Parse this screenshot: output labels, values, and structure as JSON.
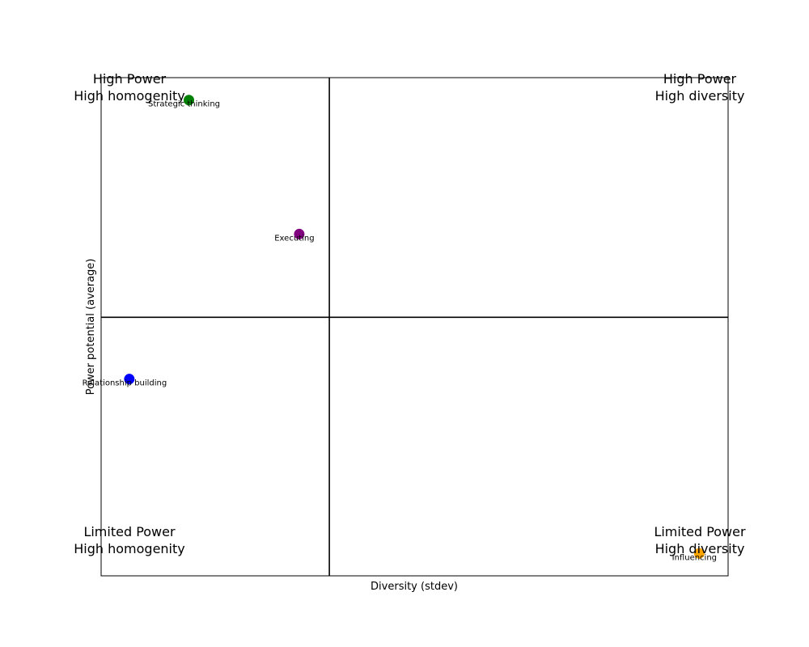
{
  "chart_data": {
    "type": "scatter",
    "title": "",
    "xlabel": "Diversity (stdev)",
    "ylabel": "Power potential (average)",
    "xlim": [
      0,
      1
    ],
    "ylim": [
      0,
      1
    ],
    "x_divider": 0.364,
    "y_divider": 0.519,
    "grid": false,
    "legend": "none",
    "points": [
      {
        "label": "Strategic thinking",
        "x": 0.14,
        "y": 0.955,
        "color": "#008000"
      },
      {
        "label": "Executing",
        "x": 0.316,
        "y": 0.686,
        "color": "#800080"
      },
      {
        "label": "Relationship building",
        "x": 0.045,
        "y": 0.395,
        "color": "#0000ff"
      },
      {
        "label": "Influencing",
        "x": 0.954,
        "y": 0.045,
        "color": "#ffa500"
      }
    ],
    "quadrant_labels": {
      "top_left": [
        "High Power",
        "High homogenity"
      ],
      "top_right": [
        "High Power",
        "High diversity"
      ],
      "bottom_left": [
        "Limited Power",
        "High homogenity"
      ],
      "bottom_right": [
        "Limited Power",
        "High diversity"
      ]
    }
  }
}
